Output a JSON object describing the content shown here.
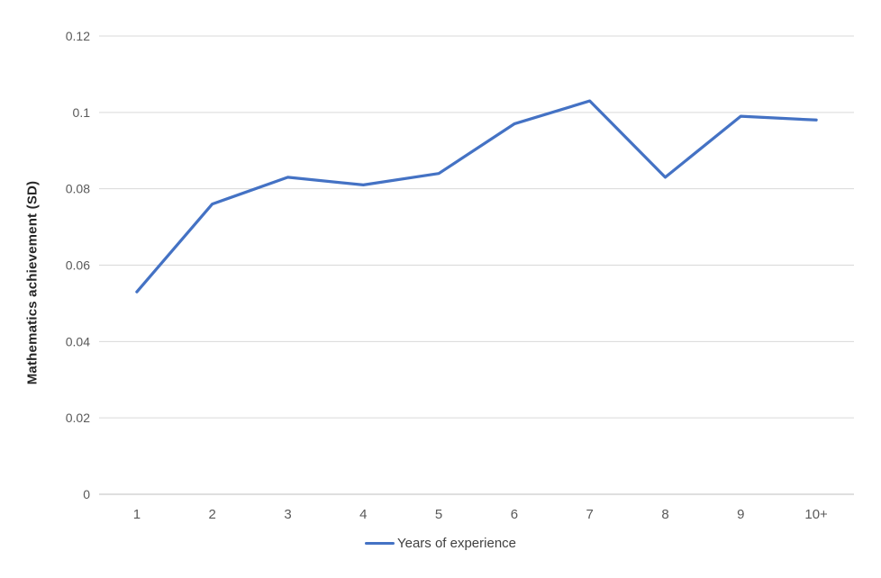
{
  "chart_data": {
    "type": "line",
    "title": "",
    "xlabel": "",
    "ylabel": "Mathematics achievement (SD)",
    "categories": [
      "1",
      "2",
      "3",
      "4",
      "5",
      "6",
      "7",
      "8",
      "9",
      "10+"
    ],
    "series": [
      {
        "name": "Years of experience",
        "values": [
          0.053,
          0.076,
          0.083,
          0.081,
          0.084,
          0.097,
          0.103,
          0.083,
          0.099,
          0.098
        ]
      }
    ],
    "ylim": [
      0,
      0.12
    ],
    "yticks": [
      0,
      0.02,
      0.04,
      0.06,
      0.08,
      0.1,
      0.12
    ],
    "ytick_labels": [
      "0",
      "0.02",
      "0.04",
      "0.06",
      "0.08",
      "0.1",
      "0.12"
    ],
    "grid": true,
    "legend_position": "bottom"
  },
  "legend": {
    "label": "Years of experience"
  },
  "colors": {
    "line": "#4472C4",
    "gridline": "#D9D9D9",
    "axis_line": "#BFBFBF",
    "tick_text": "#595959",
    "axis_title_text": "#262626",
    "legend_text": "#404040"
  }
}
